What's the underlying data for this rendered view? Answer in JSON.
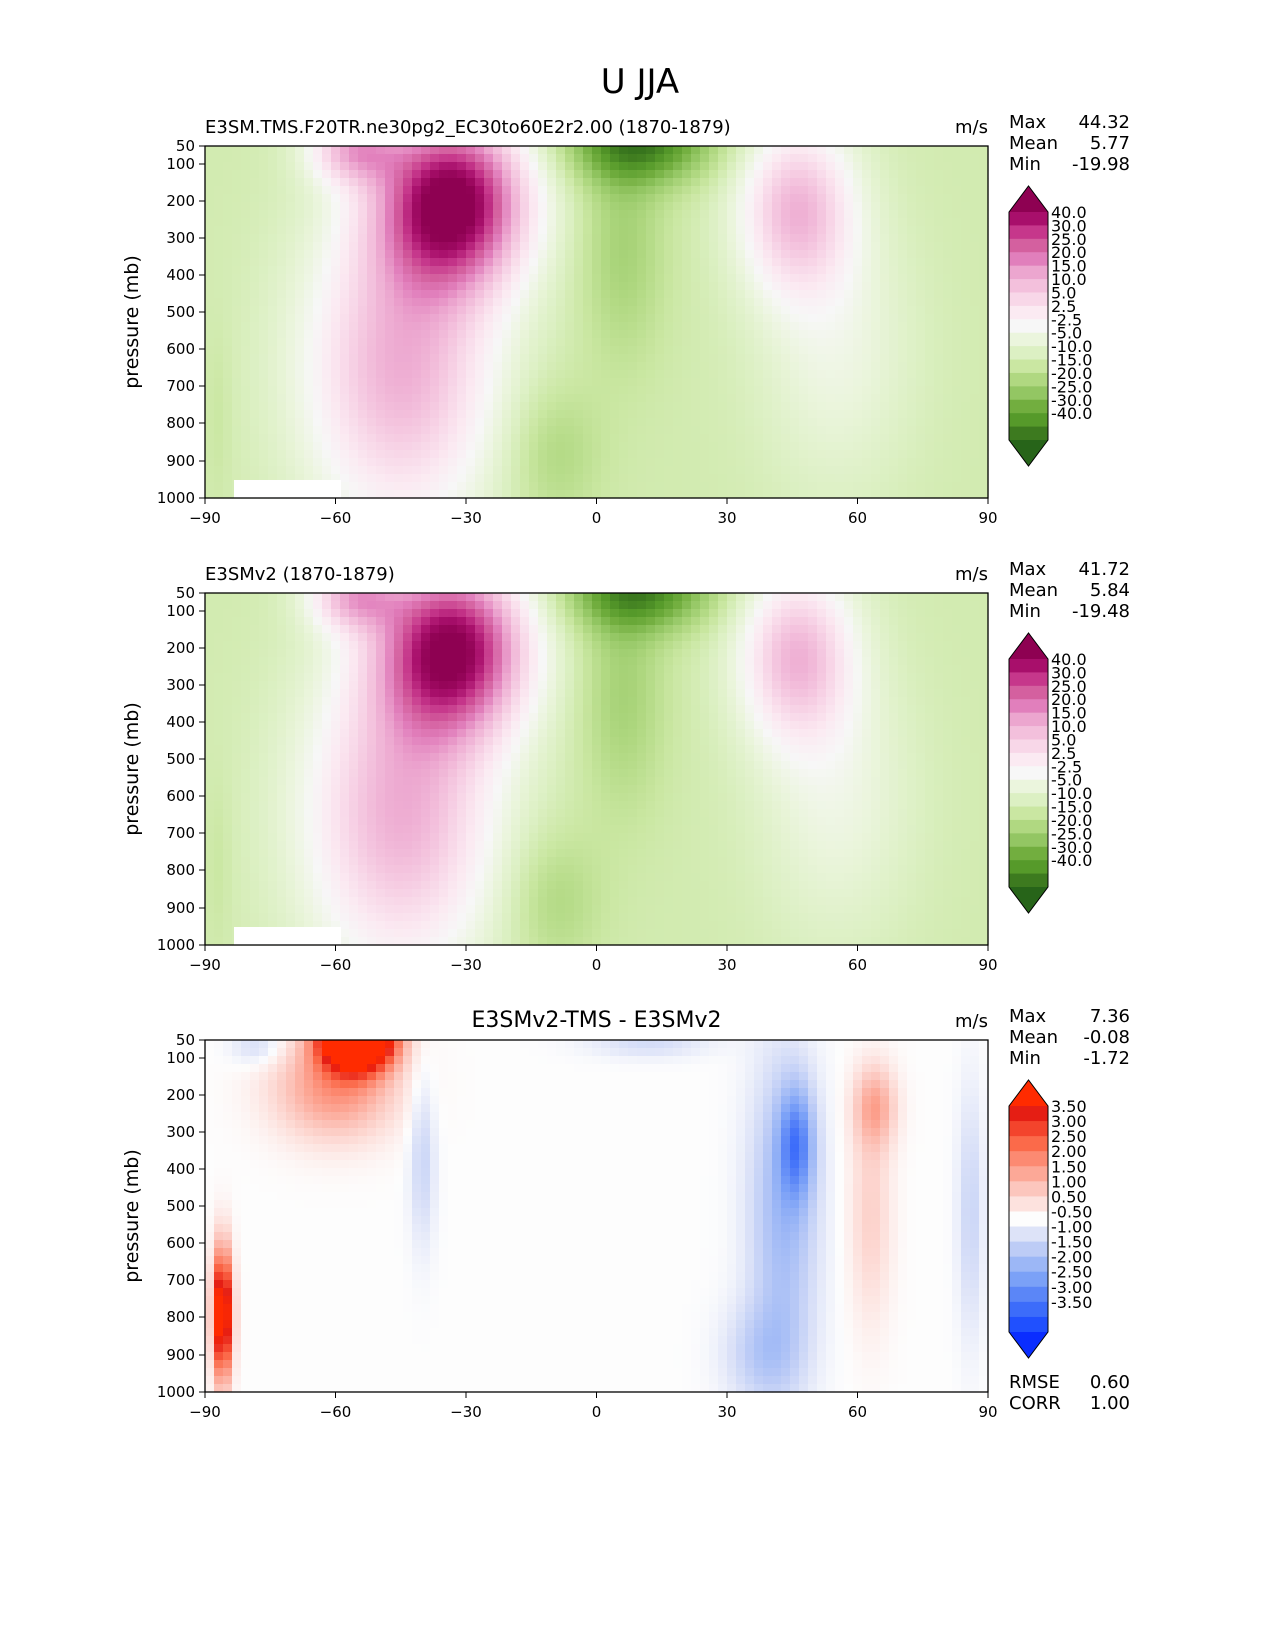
{
  "figure_title": "U JJA",
  "palettes": {
    "full": [
      "#276419",
      "#3d7a1f",
      "#569a2a",
      "#72ae3f",
      "#93c663",
      "#b0d881",
      "#cae7a2",
      "#dcf0c3",
      "#ebf5dd",
      "#f7f7f7",
      "#fbeaf2",
      "#f8d7e8",
      "#f3c0dc",
      "#eca6cf",
      "#e17fbc",
      "#d4609f",
      "#c6378b",
      "#a80f6b",
      "#8e0152"
    ],
    "diff": [
      "#0a2dff",
      "#2050fe",
      "#3c6cfa",
      "#5b86f7",
      "#7ba1f7",
      "#9cb7f6",
      "#bdccf6",
      "#dde3f8",
      "#fdfdfd",
      "#fde2de",
      "#fcc6bd",
      "#fca897",
      "#fc8a72",
      "#fb6a4a",
      "#f3442c",
      "#e51e14",
      "#ff2b00"
    ]
  },
  "chart_data": [
    {
      "type": "filled-contour",
      "panel": "test",
      "title": "E3SM.TMS.F20TR.ne30pg2_EC30to60E2r2.00 (1870-1879)",
      "units": "m/s",
      "stats": [
        {
          "label": "Max",
          "value": "44.32"
        },
        {
          "label": "Mean",
          "value": "5.77"
        },
        {
          "label": "Min",
          "value": "-19.98"
        }
      ],
      "xlabel": "",
      "ylabel": "pressure (mb)",
      "xticks": [
        "−90",
        "−60",
        "−30",
        "0",
        "30",
        "60",
        "90"
      ],
      "yticks": [
        "50",
        "100",
        "200",
        "300",
        "400",
        "500",
        "600",
        "700",
        "800",
        "900",
        "1000"
      ],
      "xlim": [
        -90,
        90
      ],
      "ylim": [
        1000,
        50
      ],
      "colorbar": [
        "40.0",
        "30.0",
        "25.0",
        "20.0",
        "15.0",
        "10.0",
        "5.0",
        "2.5",
        "-2.5",
        "-5.0",
        "-10.0",
        "-15.0",
        "-20.0",
        "-25.0",
        "-30.0",
        "-40.0"
      ],
      "features": [
        {
          "kind": "southern-jet",
          "lat": -32,
          "p": 200,
          "peak": 44.3
        },
        {
          "kind": "northern-jet",
          "lat": 46,
          "p": 200,
          "peak": 22
        },
        {
          "kind": "tropical-easterlies",
          "lat": 10,
          "p": 50,
          "min": -20
        },
        {
          "kind": "low-level-easterlies",
          "lat": -8,
          "p": 900,
          "min": -6
        }
      ]
    },
    {
      "type": "filled-contour",
      "panel": "reference",
      "title": "E3SMv2 (1870-1879)",
      "units": "m/s",
      "stats": [
        {
          "label": "Max",
          "value": "41.72"
        },
        {
          "label": "Mean",
          "value": "5.84"
        },
        {
          "label": "Min",
          "value": "-19.48"
        }
      ],
      "xlabel": "",
      "ylabel": "pressure (mb)",
      "xticks": [
        "−90",
        "−60",
        "−30",
        "0",
        "30",
        "60",
        "90"
      ],
      "yticks": [
        "50",
        "100",
        "200",
        "300",
        "400",
        "500",
        "600",
        "700",
        "800",
        "900",
        "1000"
      ],
      "xlim": [
        -90,
        90
      ],
      "ylim": [
        1000,
        50
      ],
      "colorbar": [
        "40.0",
        "30.0",
        "25.0",
        "20.0",
        "15.0",
        "10.0",
        "5.0",
        "2.5",
        "-2.5",
        "-5.0",
        "-10.0",
        "-15.0",
        "-20.0",
        "-25.0",
        "-30.0",
        "-40.0"
      ],
      "features": [
        {
          "kind": "southern-jet",
          "lat": -32,
          "p": 200,
          "peak": 41.7
        },
        {
          "kind": "northern-jet",
          "lat": 45,
          "p": 200,
          "peak": 22
        },
        {
          "kind": "tropical-easterlies",
          "lat": 10,
          "p": 50,
          "min": -19.5
        },
        {
          "kind": "low-level-easterlies",
          "lat": -8,
          "p": 900,
          "min": -6
        }
      ]
    },
    {
      "type": "filled-contour",
      "panel": "difference",
      "title": "E3SMv2-TMS - E3SMv2",
      "units": "m/s",
      "stats": [
        {
          "label": "Max",
          "value": "7.36"
        },
        {
          "label": "Mean",
          "value": "-0.08"
        },
        {
          "label": "Min",
          "value": "-1.72"
        }
      ],
      "bottom_stats": [
        {
          "label": "RMSE",
          "value": "0.60"
        },
        {
          "label": "CORR",
          "value": "1.00"
        }
      ],
      "xlabel": "",
      "ylabel": "pressure (mb)",
      "xticks": [
        "−90",
        "−60",
        "−30",
        "0",
        "30",
        "60",
        "90"
      ],
      "yticks": [
        "50",
        "100",
        "200",
        "300",
        "400",
        "500",
        "600",
        "700",
        "800",
        "900",
        "1000"
      ],
      "xlim": [
        -90,
        90
      ],
      "ylim": [
        1000,
        50
      ],
      "colorbar": [
        "3.50",
        "3.00",
        "2.50",
        "2.00",
        "1.50",
        "1.00",
        "0.50",
        "-0.50",
        "-1.00",
        "-1.50",
        "-2.00",
        "-2.50",
        "-3.00",
        "-3.50"
      ],
      "features": [
        {
          "kind": "positive-max",
          "lat": -55,
          "p": 50,
          "value": 7.36
        },
        {
          "kind": "negative-min",
          "lat": 46,
          "p": 300,
          "value": -1.72
        },
        {
          "kind": "positive-patch",
          "lat": 64,
          "p": 200,
          "value": 1.2
        },
        {
          "kind": "positive-streak",
          "lat": -86,
          "p": 800,
          "value": 4.5
        }
      ]
    }
  ]
}
